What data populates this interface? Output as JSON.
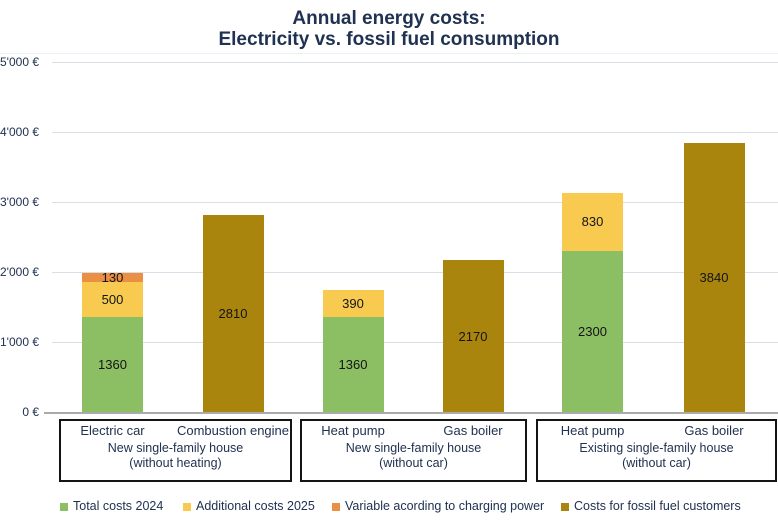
{
  "title": {
    "line1": "Annual energy costs:",
    "line2": "Electricity vs. fossil fuel consumption"
  },
  "colors": {
    "title_text": "#203251",
    "axis_text": "#203251",
    "value_text": "#141414",
    "gridline": "#D9DEE6",
    "zero_line": "#ABABAB",
    "box_border": "#141414",
    "top_rule": "#EDF0F3"
  },
  "chart_data": {
    "type": "bar",
    "stacked": true,
    "currency": "€",
    "ylim": [
      0,
      5000
    ],
    "ytick_step": 1000,
    "ytick_labels": [
      "0 €",
      "1'000 €",
      "2'000 €",
      "3'000 €",
      "4'000 €",
      "5'000 €"
    ],
    "grid": true,
    "legend_position": "bottom",
    "series": [
      {
        "name": "Total costs 2024",
        "color": "#8CBF63"
      },
      {
        "name": "Additional costs 2025",
        "color": "#F8CB50"
      },
      {
        "name": "Variable acording to charging power",
        "color": "#EA9044"
      },
      {
        "name": "Costs for fossil fuel customers",
        "color": "#A9850E"
      }
    ],
    "groups": [
      {
        "label_line1": "New single-family house",
        "label_line2": "(without heating)",
        "bars": [
          {
            "category": "Electric car",
            "segments": [
              {
                "series": "Total costs 2024",
                "value": 1360
              },
              {
                "series": "Additional costs 2025",
                "value": 500
              },
              {
                "series": "Variable acording to charging power",
                "value": 130
              }
            ]
          },
          {
            "category": "Combustion engine",
            "segments": [
              {
                "series": "Costs for fossil fuel customers",
                "value": 2810
              }
            ]
          }
        ]
      },
      {
        "label_line1": "New single-family house",
        "label_line2": "(without car)",
        "bars": [
          {
            "category": "Heat pump",
            "segments": [
              {
                "series": "Total costs 2024",
                "value": 1360
              },
              {
                "series": "Additional costs 2025",
                "value": 390
              }
            ]
          },
          {
            "category": "Gas boiler",
            "segments": [
              {
                "series": "Costs for fossil fuel customers",
                "value": 2170
              }
            ]
          }
        ]
      },
      {
        "label_line1": "Existing single-family house",
        "label_line2": "(without car)",
        "bars": [
          {
            "category": "Heat pump",
            "segments": [
              {
                "series": "Total costs 2024",
                "value": 2300
              },
              {
                "series": "Additional costs 2025",
                "value": 830
              }
            ]
          },
          {
            "category": "Gas boiler",
            "segments": [
              {
                "series": "Costs for fossil fuel customers",
                "value": 3840
              }
            ]
          }
        ]
      }
    ]
  }
}
